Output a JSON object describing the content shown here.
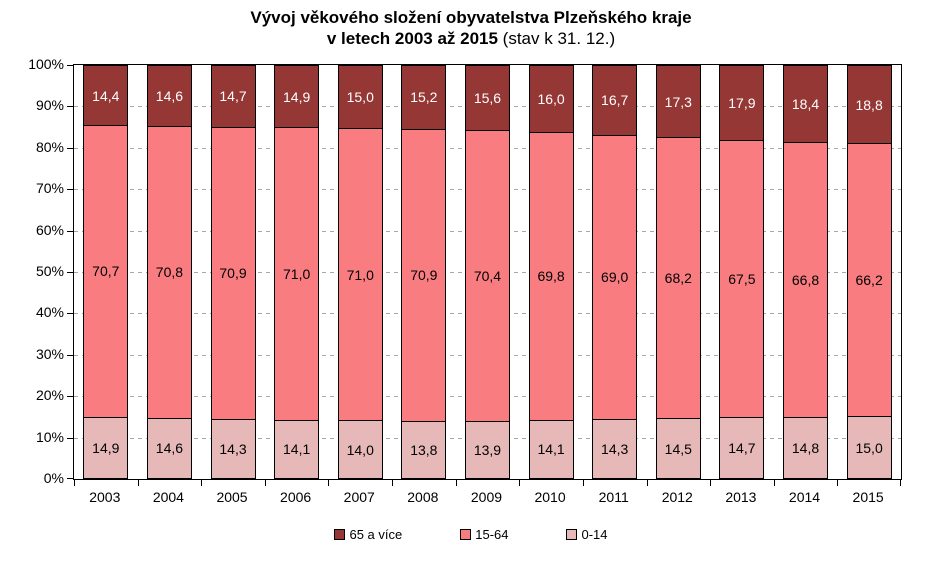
{
  "title": {
    "line1": "Vývoj věkového složení obyvatelstva Plzeňského kraje",
    "line2_bold": "v letech 2003 až 2015",
    "line2_normal": " (stav k 31. 12.)"
  },
  "chart_data": {
    "type": "bar",
    "stacked": true,
    "percent_stacked": true,
    "decimal_separator": ",",
    "categories": [
      "2003",
      "2004",
      "2005",
      "2006",
      "2007",
      "2008",
      "2009",
      "2010",
      "2011",
      "2012",
      "2013",
      "2014",
      "2015"
    ],
    "series": [
      {
        "name": "0-14",
        "color": "#E6B9B8",
        "label_color": "#000000",
        "values": [
          14.9,
          14.6,
          14.3,
          14.1,
          14.0,
          13.8,
          13.9,
          14.1,
          14.3,
          14.5,
          14.7,
          14.8,
          15.0
        ]
      },
      {
        "name": "15-64",
        "color": "#F97D80",
        "label_color": "#000000",
        "values": [
          70.7,
          70.8,
          70.9,
          71.0,
          71.0,
          70.9,
          70.4,
          69.8,
          69.0,
          68.2,
          67.5,
          66.8,
          66.2
        ]
      },
      {
        "name": "65 a více",
        "color": "#953735",
        "label_color": "#FFFFFF",
        "values": [
          14.4,
          14.6,
          14.7,
          14.9,
          15.0,
          15.2,
          15.6,
          16.0,
          16.7,
          17.3,
          17.9,
          18.4,
          18.8
        ]
      }
    ],
    "legend_order": [
      "65 a více",
      "15-64",
      "0-14"
    ],
    "legend_position": "bottom",
    "y_ticks": [
      "0%",
      "10%",
      "20%",
      "30%",
      "40%",
      "50%",
      "60%",
      "70%",
      "80%",
      "90%",
      "100%"
    ],
    "ylim": [
      0,
      100
    ],
    "grid": "horizontal-dashed",
    "grid_color": "#A6A6A6",
    "axis_color": "#000000"
  }
}
